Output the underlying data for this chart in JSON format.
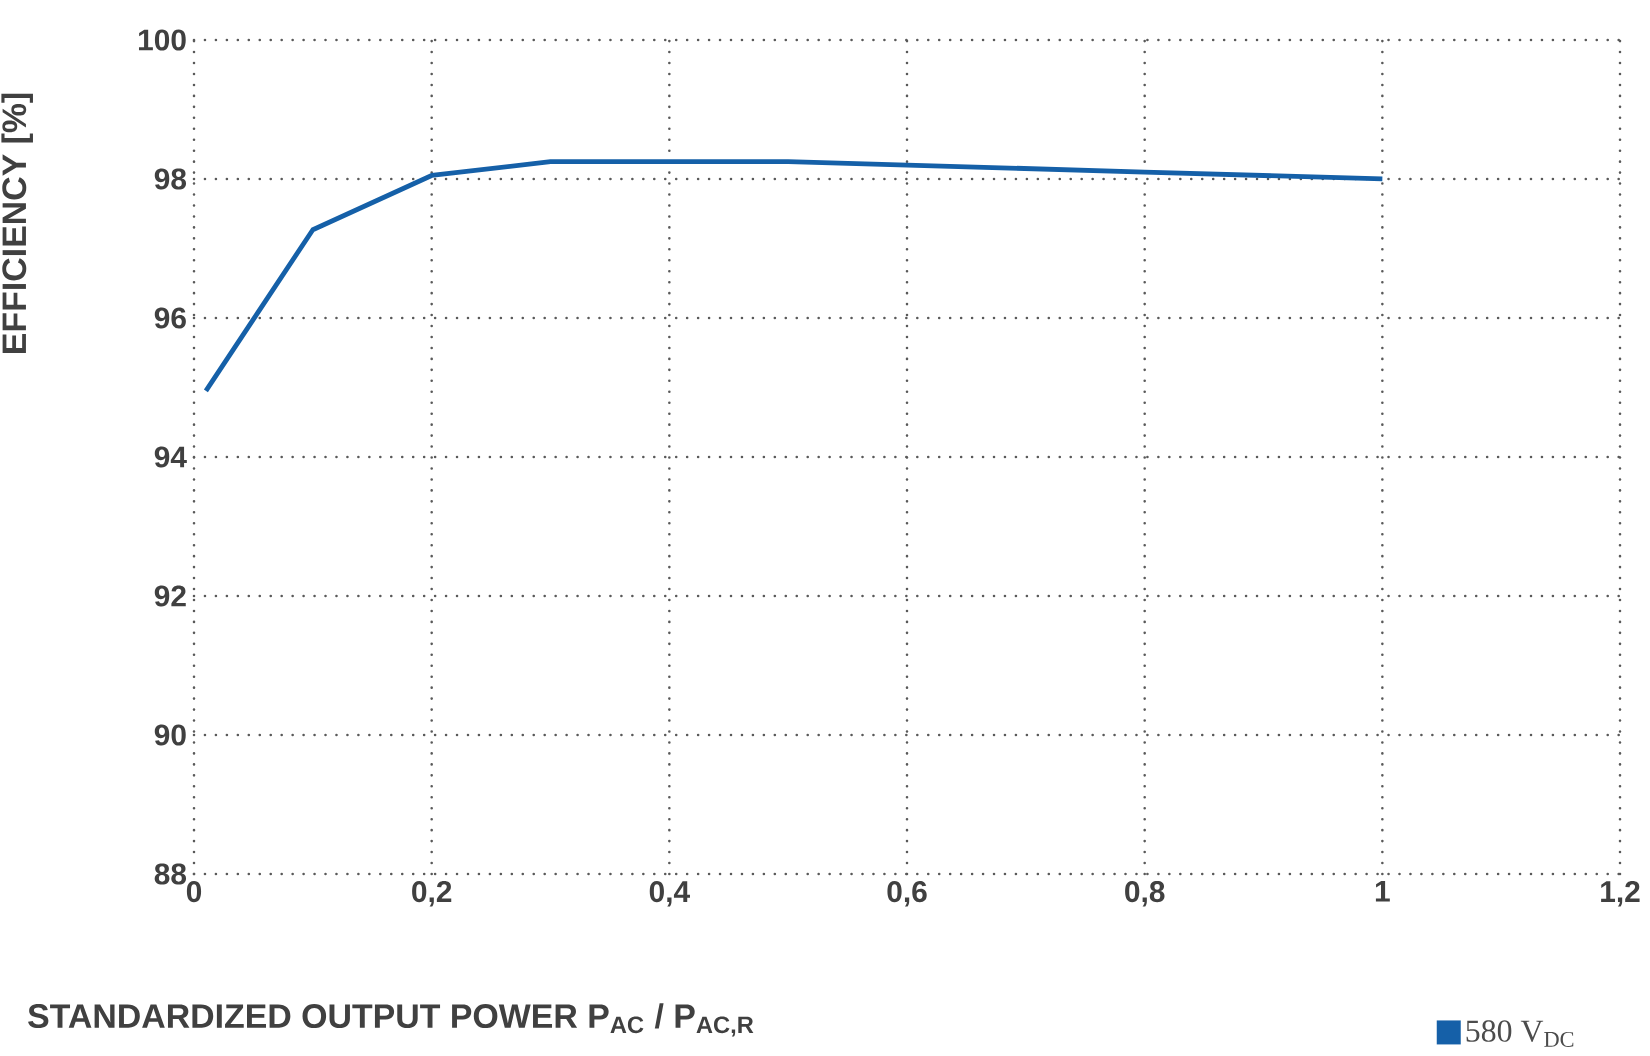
{
  "chart_data": {
    "type": "line",
    "xlabel": "STANDARDIZED OUTPUT POWER P$_{AC}$ / P$_{AC,R}$",
    "ylabel": "EFFICIENCY [%]",
    "series": [
      {
        "name": "580 V$_{DC}$",
        "color": "#1560a8",
        "x": [
          0.01,
          0.1,
          0.2,
          0.3,
          0.4,
          0.5,
          0.6,
          0.7,
          0.8,
          1.0
        ],
        "values": [
          94.95,
          97.27,
          98.05,
          98.25,
          98.25,
          98.25,
          98.2,
          98.15,
          98.1,
          98.0
        ]
      }
    ],
    "xlim": [
      0,
      1.2
    ],
    "xticks": [
      0,
      {
        "value": 0.2,
        "label": "0,2"
      },
      {
        "value": 0.4,
        "label": "0,4"
      },
      {
        "value": 0.6,
        "label": "0,6"
      },
      {
        "value": 0.8,
        "label": "0,8"
      },
      1,
      {
        "value": 1.2,
        "label": "1,2"
      }
    ],
    "ylim": [
      88,
      100
    ],
    "yticks": [
      88,
      90,
      92,
      94,
      96,
      98,
      100
    ],
    "grid": true,
    "legend": "bottom right",
    "marker": "none",
    "line_style": "solid"
  }
}
